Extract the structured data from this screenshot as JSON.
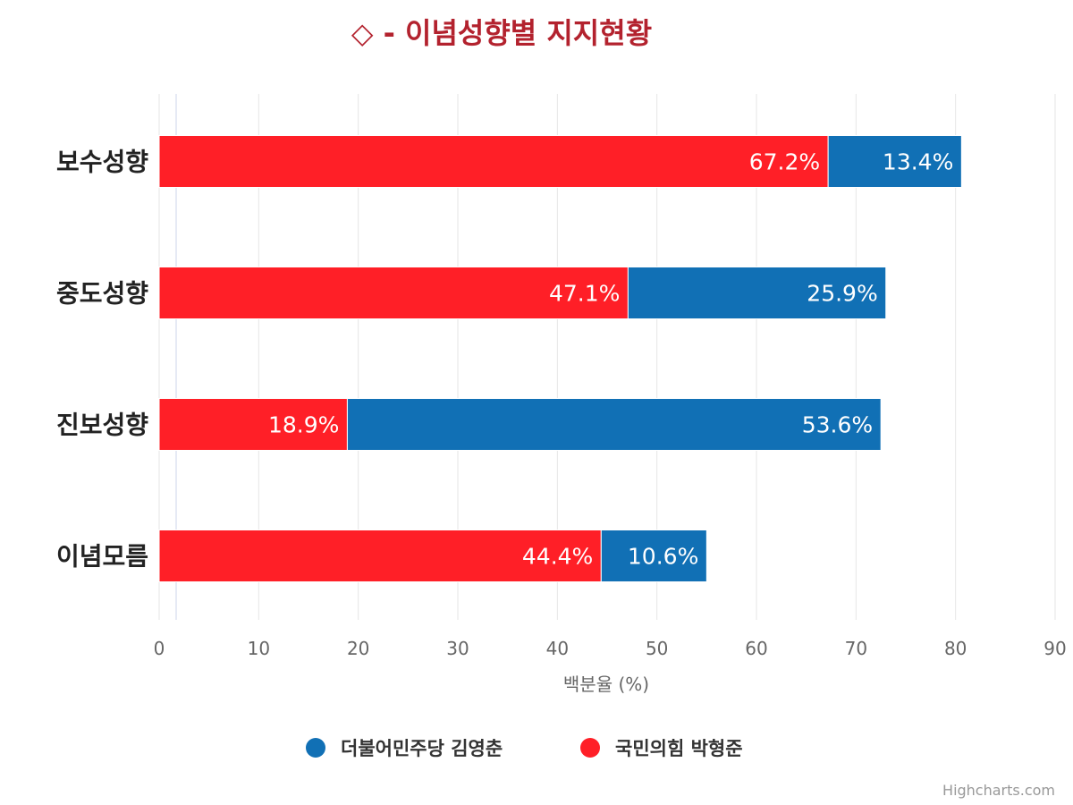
{
  "chart_data": {
    "type": "bar",
    "orientation": "horizontal",
    "stacked": true,
    "title": "◇ - 이념성향별 지지현황",
    "title_color": "#b3222e",
    "categories": [
      "보수성향",
      "중도성향",
      "진보성향",
      "이념모름"
    ],
    "series": [
      {
        "name": "국민의힘 박형준",
        "color": "#ff1f27",
        "values": [
          67.2,
          47.1,
          18.9,
          44.4
        ],
        "labels": [
          "67.2%",
          "47.1%",
          "18.9%",
          "44.4%"
        ]
      },
      {
        "name": "더불어민주당 김영춘",
        "color": "#1170b5",
        "values": [
          13.4,
          25.9,
          53.6,
          10.6
        ],
        "labels": [
          "13.4%",
          "25.9%",
          "53.6%",
          "10.6%"
        ]
      }
    ],
    "legend_order": [
      "더불어민주당 김영춘",
      "국민의힘 박형준"
    ],
    "xlabel": "백분율 (%)",
    "xlim": [
      0,
      90
    ],
    "xticks": [
      "0",
      "10",
      "20",
      "30",
      "40",
      "50",
      "60",
      "70",
      "80",
      "90"
    ],
    "grid": true,
    "legend_position": "bottom",
    "credits": "Highcharts.com"
  }
}
